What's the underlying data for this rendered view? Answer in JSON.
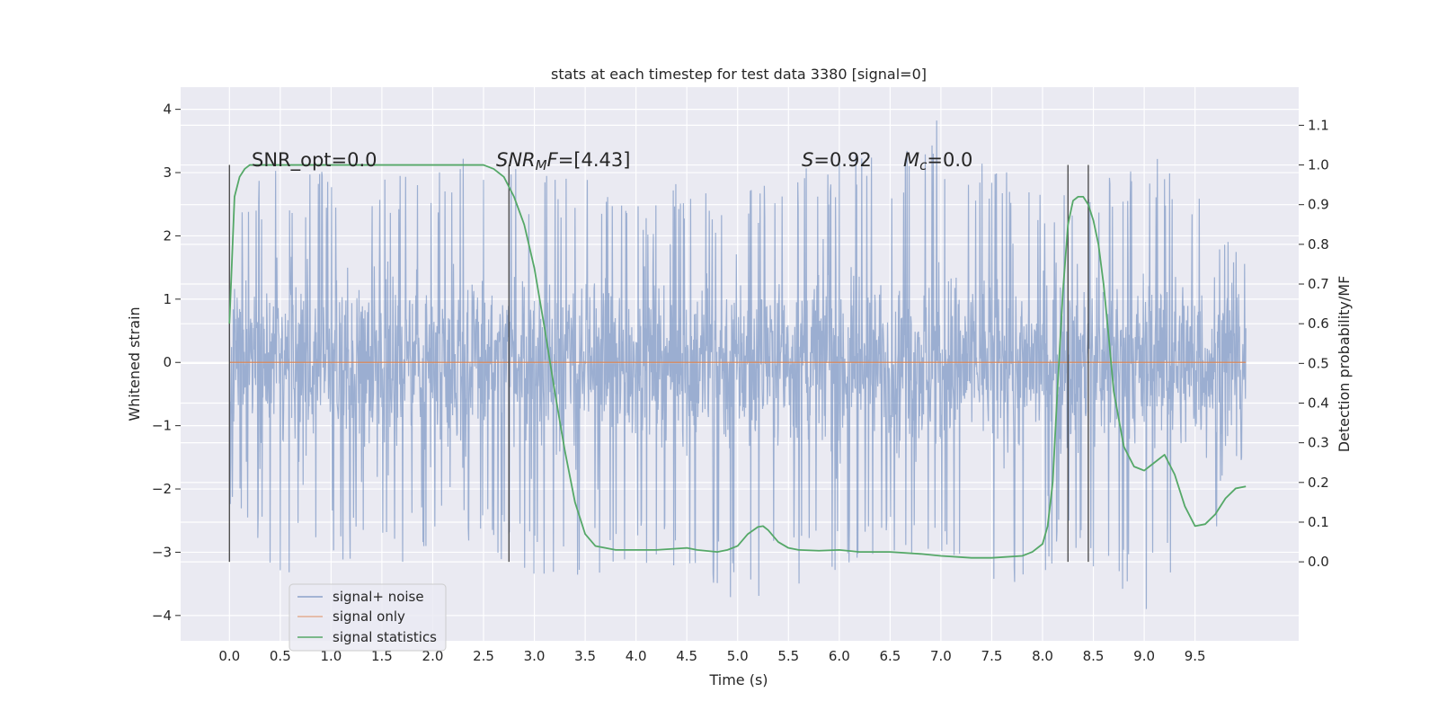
{
  "chart_data": {
    "type": "line",
    "title": "stats at each timestep for test data 3380 [signal=0]",
    "xlabel": "Time (s)",
    "ylabel": "Whitened strain",
    "y2label": "Detection probability/MF",
    "xlim": [
      -0.48,
      10.52
    ],
    "ylim": [
      -4.4,
      4.35
    ],
    "y2lim": [
      -0.199,
      1.196
    ],
    "x_ticks": [
      "0.0",
      "0.5",
      "1.0",
      "1.5",
      "2.0",
      "2.5",
      "3.0",
      "3.5",
      "4.0",
      "4.5",
      "5.0",
      "5.5",
      "6.0",
      "6.5",
      "7.0",
      "7.5",
      "8.0",
      "8.5",
      "9.0",
      "9.5"
    ],
    "y_ticks": [
      "4",
      "3",
      "2",
      "1",
      "0",
      "−1",
      "−2",
      "−3",
      "−4"
    ],
    "y2_ticks": [
      "1.1",
      "1.0",
      "0.9",
      "0.8",
      "0.7",
      "0.6",
      "0.5",
      "0.4",
      "0.3",
      "0.2",
      "0.1",
      "0.0"
    ],
    "grid": true,
    "legend_position": "lower-left",
    "annotations": {
      "snr_opt": "SNR_opt=0.0",
      "snr_mf_italic": "SNR",
      "snr_mf_sub": "M",
      "snr_mf_tail": "F",
      "snr_mf_value": "=[4.43]",
      "s_italic": "S",
      "s_value": "=0.92",
      "mc_italic": "M",
      "mc_sub": "c",
      "mc_value": "=0.0"
    },
    "vertical_markers": [
      0.0,
      2.75,
      8.25,
      8.45
    ],
    "series": [
      {
        "name": "signal+ noise",
        "color": "#4c72b0",
        "x_range": [
          0.0,
          10.0
        ],
        "upper_envelope": {
          "x": [
            0.0,
            0.5,
            1.0,
            1.5,
            2.0,
            2.5,
            3.0,
            3.5,
            4.0,
            4.5,
            5.0,
            5.5,
            6.0,
            6.5,
            7.0,
            7.5,
            8.0,
            8.5,
            9.0,
            9.5,
            10.0
          ],
          "y": [
            2.6,
            3.1,
            3.0,
            3.0,
            3.0,
            3.6,
            3.0,
            3.0,
            2.6,
            2.9,
            2.6,
            3.1,
            3.3,
            3.3,
            3.9,
            3.1,
            2.8,
            2.9,
            3.4,
            2.8,
            1.6
          ]
        },
        "lower_envelope": {
          "x": [
            0.0,
            0.5,
            1.0,
            1.5,
            2.0,
            2.5,
            3.0,
            3.5,
            4.0,
            4.5,
            5.0,
            5.5,
            6.0,
            6.5,
            7.0,
            7.5,
            8.0,
            8.5,
            9.0,
            9.5,
            10.0
          ],
          "y": [
            -2.3,
            -3.4,
            -3.0,
            -3.5,
            -2.9,
            -2.9,
            -3.5,
            -3.4,
            -3.2,
            -3.3,
            -3.8,
            -3.6,
            -3.3,
            -3.2,
            -3.0,
            -3.8,
            -3.3,
            -3.3,
            -4.0,
            -3.5,
            -1.4
          ]
        },
        "max_abs": 4.05
      },
      {
        "name": "signal only",
        "color": "#dd8452",
        "x": [
          0.0,
          10.0
        ],
        "y": [
          0.0,
          0.0
        ]
      },
      {
        "name": "signal statistics",
        "color": "#55a868",
        "axis": "right",
        "x": [
          0.0,
          0.05,
          0.1,
          0.15,
          0.2,
          0.3,
          0.5,
          1.0,
          1.5,
          2.0,
          2.3,
          2.5,
          2.6,
          2.7,
          2.8,
          2.9,
          3.0,
          3.1,
          3.2,
          3.3,
          3.4,
          3.5,
          3.6,
          3.8,
          4.0,
          4.2,
          4.5,
          4.6,
          4.8,
          4.9,
          5.0,
          5.1,
          5.2,
          5.25,
          5.3,
          5.4,
          5.5,
          5.6,
          5.8,
          6.0,
          6.2,
          6.5,
          6.8,
          7.0,
          7.3,
          7.5,
          7.8,
          7.9,
          8.0,
          8.05,
          8.1,
          8.15,
          8.2,
          8.25,
          8.3,
          8.35,
          8.4,
          8.45,
          8.5,
          8.55,
          8.6,
          8.65,
          8.7,
          8.8,
          8.9,
          9.0,
          9.1,
          9.2,
          9.3,
          9.4,
          9.5,
          9.6,
          9.7,
          9.8,
          9.9,
          10.0
        ],
        "y": [
          0.6,
          0.92,
          0.97,
          0.99,
          1.0,
          1.0,
          1.0,
          1.0,
          1.0,
          1.0,
          1.0,
          1.0,
          0.99,
          0.97,
          0.92,
          0.85,
          0.74,
          0.59,
          0.43,
          0.28,
          0.15,
          0.07,
          0.04,
          0.03,
          0.03,
          0.03,
          0.035,
          0.03,
          0.025,
          0.03,
          0.04,
          0.07,
          0.088,
          0.09,
          0.08,
          0.05,
          0.035,
          0.03,
          0.028,
          0.03,
          0.025,
          0.025,
          0.02,
          0.015,
          0.01,
          0.01,
          0.015,
          0.025,
          0.045,
          0.09,
          0.2,
          0.45,
          0.68,
          0.85,
          0.91,
          0.92,
          0.92,
          0.9,
          0.86,
          0.8,
          0.7,
          0.57,
          0.43,
          0.29,
          0.24,
          0.23,
          0.25,
          0.27,
          0.22,
          0.14,
          0.09,
          0.095,
          0.12,
          0.16,
          0.185,
          0.19
        ]
      }
    ]
  }
}
